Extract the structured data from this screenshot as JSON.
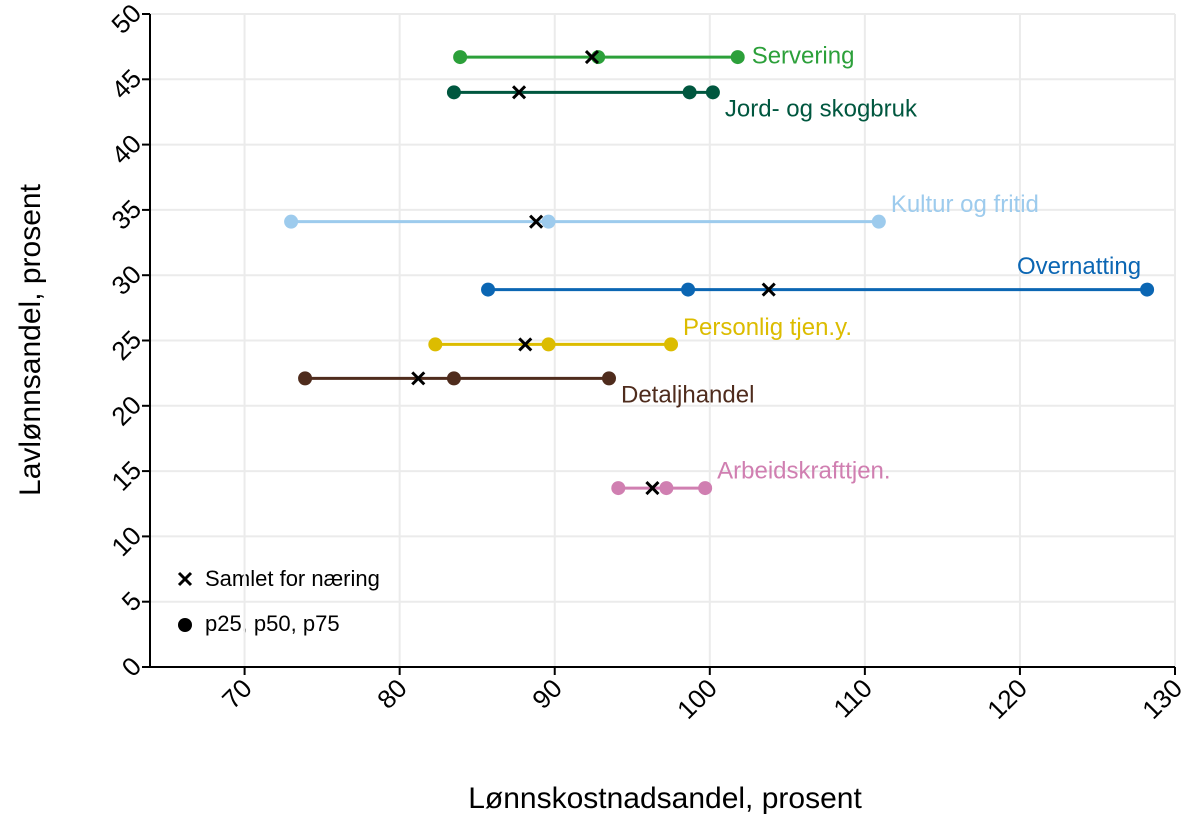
{
  "chart_data": {
    "type": "dot-range",
    "x_label": "Lønnskostnadsandel, prosent",
    "y_label": "Lavlønnsandel, prosent",
    "xlim": [
      63.9,
      130
    ],
    "xticks": [
      70,
      80,
      90,
      100,
      110,
      120,
      130
    ],
    "ylim": [
      0,
      50
    ],
    "yticks": [
      0,
      5,
      10,
      15,
      20,
      25,
      30,
      35,
      40,
      45,
      50
    ],
    "grid": true,
    "legend": [
      "Samlet for næring",
      "p25, p50, p75"
    ],
    "series": [
      {
        "name": "Servering",
        "color": "#2ca03a",
        "y": 46.7,
        "p25": 83.9,
        "p50": 92.8,
        "p75": 101.8,
        "total": 92.4
      },
      {
        "name": "Jord- og skogbruk",
        "color": "#00573f",
        "y": 44.0,
        "p25": 83.5,
        "p50": 98.7,
        "p75": 100.2,
        "total": 87.7
      },
      {
        "name": "Kultur og fritid",
        "color": "#9dcbed",
        "y": 34.1,
        "p25": 73.0,
        "p50": 89.6,
        "p75": 110.9,
        "total": 88.8
      },
      {
        "name": "Overnatting",
        "color": "#0b66b3",
        "y": 28.9,
        "p25": 85.7,
        "p50": 98.6,
        "p75": 128.2,
        "total": 103.8
      },
      {
        "name": "Personlig tjen.y.",
        "color": "#dcbc00",
        "y": 24.7,
        "p25": 82.3,
        "p50": 89.6,
        "p75": 97.5,
        "total": 88.1
      },
      {
        "name": "Detaljhandel",
        "color": "#4f2c1d",
        "y": 22.1,
        "p25": 73.9,
        "p50": 83.5,
        "p75": 93.5,
        "total": 81.2
      },
      {
        "name": "Arbeidskrafttjen.",
        "color": "#d07fb1",
        "y": 13.7,
        "p25": 94.1,
        "p50": 97.2,
        "p75": 99.7,
        "total": 96.3
      }
    ]
  }
}
